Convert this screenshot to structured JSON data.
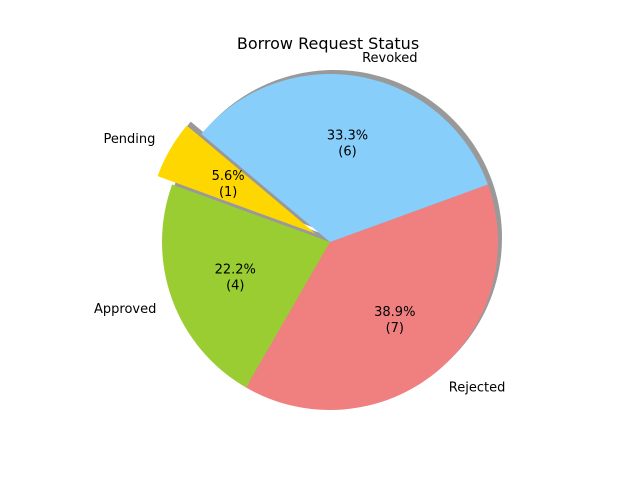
{
  "chart_data": {
    "type": "pie",
    "title": "Borrow Request Status",
    "start_angle_deg": 140,
    "direction": "counterclockwise",
    "shadow": true,
    "slices": [
      {
        "label": "Pending",
        "value": 1,
        "percent_text": "5.6%",
        "count_text": "(1)",
        "color": "#ffd700",
        "exploded": true
      },
      {
        "label": "Approved",
        "value": 4,
        "percent_text": "22.2%",
        "count_text": "(4)",
        "color": "#9acd32",
        "exploded": false
      },
      {
        "label": "Rejected",
        "value": 7,
        "percent_text": "38.9%",
        "count_text": "(7)",
        "color": "#f08080",
        "exploded": false
      },
      {
        "label": "Revoked",
        "value": 6,
        "percent_text": "33.3%",
        "count_text": "(6)",
        "color": "#87cefa",
        "exploded": false
      }
    ]
  }
}
